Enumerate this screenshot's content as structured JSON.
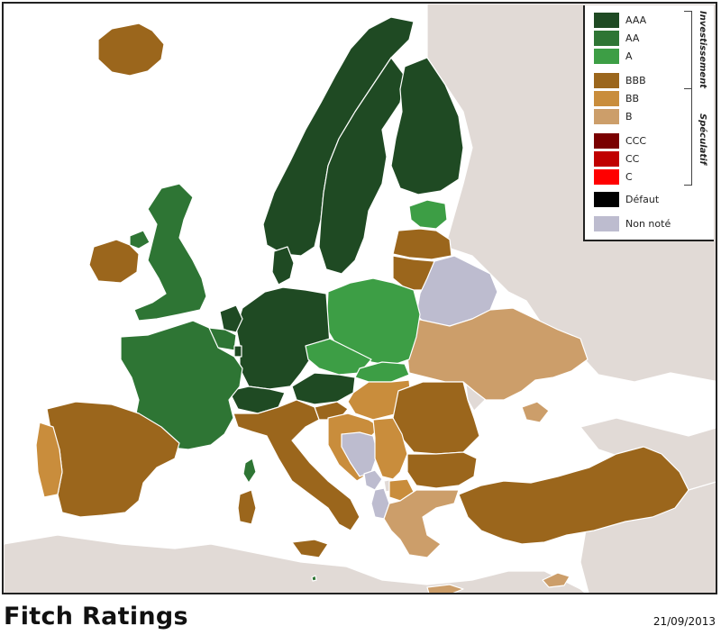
{
  "title": "Fitch Ratings",
  "date": "21/09/2013",
  "legend": {
    "groups": [
      {
        "label": "Investissement"
      },
      {
        "label": "Spéculatif"
      }
    ],
    "items": [
      {
        "label": "AAA",
        "color": "#1f4a23"
      },
      {
        "label": "AA",
        "color": "#2e7534"
      },
      {
        "label": "A",
        "color": "#3d9e45"
      },
      {
        "label": "BBB",
        "color": "#9b661c"
      },
      {
        "label": "BB",
        "color": "#c98d3c"
      },
      {
        "label": "B",
        "color": "#cc9e6a"
      },
      {
        "label": "CCC",
        "color": "#7a0000"
      },
      {
        "label": "CC",
        "color": "#c00000"
      },
      {
        "label": "C",
        "color": "#ff0000"
      },
      {
        "label": "Défaut",
        "color": "#000000"
      },
      {
        "label": "Non noté",
        "color": "#bdbccf"
      }
    ]
  },
  "map": {
    "colors": {
      "sea": "#ffffff",
      "land_unrated_region": "#e1dad6",
      "border": "#ffffff"
    }
  }
}
